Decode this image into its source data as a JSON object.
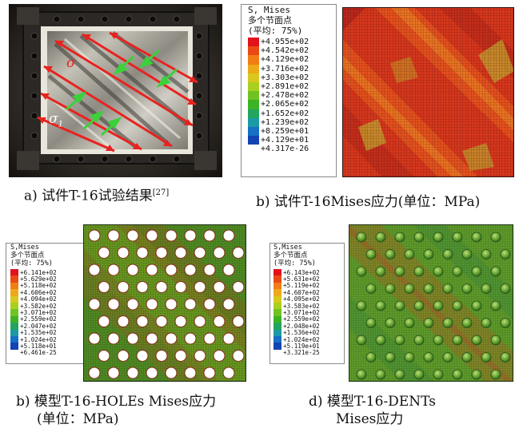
{
  "panels": {
    "a": {
      "caption_text": "a) 试件T-16试验结果",
      "caption_ref": "[27]",
      "sigma1_label": "σ",
      "sigma2_label": "σ",
      "sigma2_sub": "1"
    },
    "b": {
      "caption_line1": "b) 试件T-16Mises应力(单位：MPa)"
    },
    "c": {
      "caption_line1": "b) 模型T-16-HOLEs Mises应力",
      "caption_line2": "(单位：MPa)"
    },
    "d": {
      "caption_line1": "d) 模型T-16-DENTs",
      "caption_line2": "Mises应力"
    }
  },
  "legends": {
    "b": {
      "header": [
        "S, Mises",
        "多个节面点",
        "(平均: 75%)"
      ],
      "values": [
        "+4.955e+02",
        "+4.542e+02",
        "+4.129e+02",
        "+3.716e+02",
        "+3.303e+02",
        "+2.891e+02",
        "+2.478e+02",
        "+2.065e+02",
        "+1.652e+02",
        "+1.239e+02",
        "+8.259e+01",
        "+4.129e+01",
        "+4.317e-26"
      ]
    },
    "c": {
      "header": [
        "S,Mises",
        "多个节面点",
        "(平均: 75%)"
      ],
      "values": [
        "+6.141e+02",
        "+5.629e+02",
        "+5.118e+02",
        "+4.606e+02",
        "+4.094e+02",
        "+3.582e+02",
        "+3.071e+02",
        "+2.559e+02",
        "+2.047e+02",
        "+1.535e+02",
        "+1.024e+02",
        "+5.118e+01",
        "+6.461e-25"
      ]
    },
    "d": {
      "header": [
        "S,Mises",
        "多个节面点",
        "(平均: 75%)"
      ],
      "values": [
        "+6.143e+02",
        "+5.631e+02",
        "+5.119e+02",
        "+4.607e+02",
        "+4.095e+02",
        "+3.583e+02",
        "+3.071e+02",
        "+2.559e+02",
        "+2.048e+02",
        "+1.536e+02",
        "+1.024e+02",
        "+5.119e+01",
        "+3.321e-25"
      ]
    }
  },
  "colors": {
    "scale": [
      "#e2121c",
      "#ea4a14",
      "#f27d16",
      "#ecaa1a",
      "#d8c81d",
      "#a9d01f",
      "#70c321",
      "#3cb324",
      "#23a560",
      "#1b9aa6",
      "#1670c3",
      "#1443b4",
      "#103296"
    ],
    "arrow_red": "#e8231f",
    "arrow_green": "#3cd13a"
  }
}
